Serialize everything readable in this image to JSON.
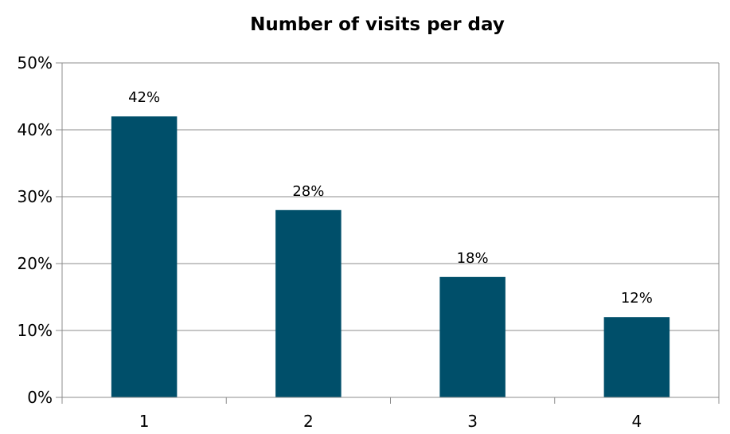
{
  "chart_data": {
    "type": "bar",
    "title": "Number of visits per day",
    "xlabel": "",
    "ylabel": "",
    "categories": [
      "1",
      "2",
      "3",
      "4"
    ],
    "values": [
      42,
      28,
      18,
      12
    ],
    "data_labels": [
      "42%",
      "28%",
      "18%",
      "12%"
    ],
    "y_ticks": [
      0,
      10,
      20,
      30,
      40,
      50
    ],
    "y_tick_labels": [
      "0%",
      "10%",
      "20%",
      "30%",
      "40%",
      "50%"
    ],
    "ylim": [
      0,
      50
    ],
    "grid": true,
    "legend": "none",
    "bar_color": "#004f6a",
    "grid_color": "#8c8c8c"
  }
}
